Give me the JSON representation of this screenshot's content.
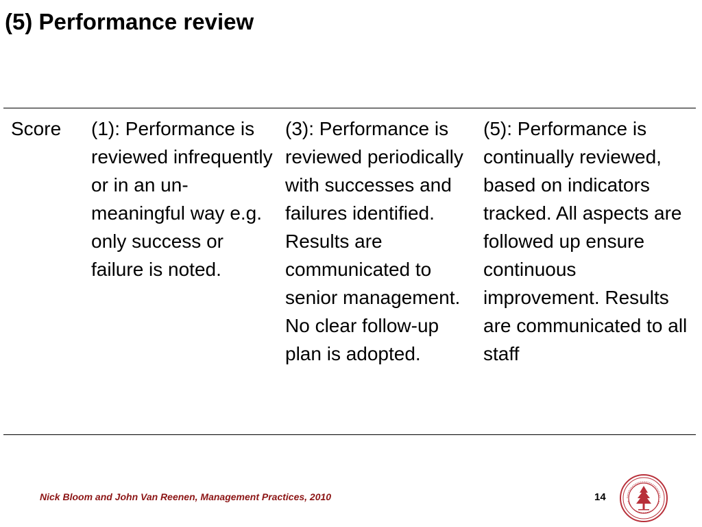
{
  "slide": {
    "title": "(5) Performance review",
    "table": {
      "score_label": "Score",
      "col1": "(1): Performance is reviewed infrequently or in an un-meaningful way e.g. only success or failure is noted.",
      "col3": "(3): Performance is reviewed periodically with successes and failures identified. Results are communicated to senior management. No clear follow-up plan is adopted.",
      "col5": "(5): Performance is continually reviewed, based on indicators tracked. All aspects are followed up ensure continuous improvement. Results are communicated to all staff"
    },
    "footer": "Nick Bloom and John Van Reenen, Management Practices, 2010",
    "page_number": "14",
    "seal_icon": "university-seal-icon",
    "colors": {
      "footer_text": "#8c1515",
      "seal": "#b8303a"
    }
  }
}
